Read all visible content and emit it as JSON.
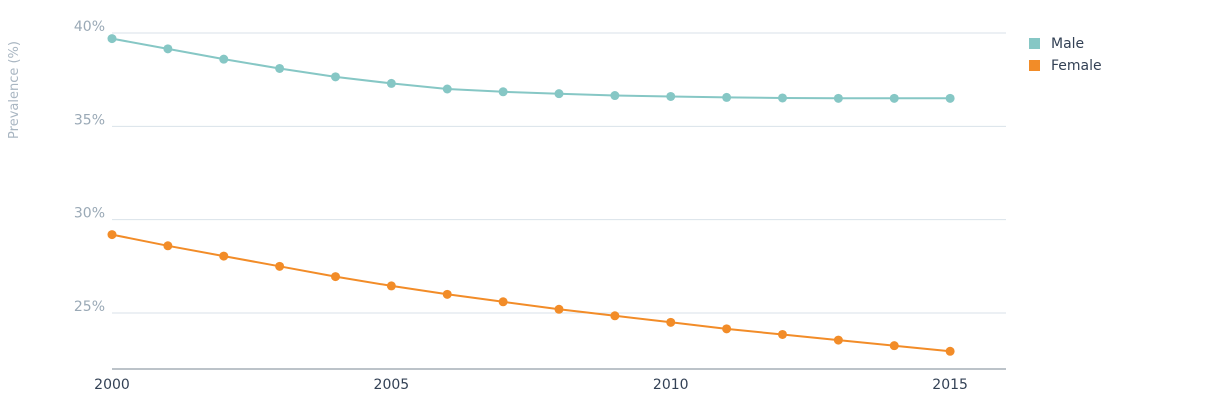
{
  "chart_data": {
    "type": "line",
    "ylabel": "Prevalence (%)",
    "xlabel": "",
    "xlim": [
      2000,
      2016
    ],
    "ylim": [
      22,
      40
    ],
    "x_ticks": [
      2000,
      2005,
      2010,
      2015
    ],
    "x_tick_labels": [
      "2000",
      "2005",
      "2010",
      "2015"
    ],
    "y_ticks": [
      25,
      30,
      35,
      40
    ],
    "y_tick_labels": [
      "25%",
      "30%",
      "35%",
      "40%"
    ],
    "grid": true,
    "legend_position": "top-right",
    "x": [
      2000,
      2001,
      2002,
      2003,
      2004,
      2005,
      2006,
      2007,
      2008,
      2009,
      2010,
      2011,
      2012,
      2013,
      2014,
      2015
    ],
    "series": [
      {
        "name": "Male",
        "color": "#86c7c5",
        "values": [
          39.7,
          39.15,
          38.6,
          38.1,
          37.65,
          37.3,
          37.0,
          36.85,
          36.75,
          36.65,
          36.6,
          36.55,
          36.52,
          36.5,
          36.5,
          36.5
        ]
      },
      {
        "name": "Female",
        "color": "#f28c28",
        "values": [
          29.2,
          28.6,
          28.05,
          27.5,
          26.95,
          26.45,
          26.0,
          25.6,
          25.2,
          24.85,
          24.5,
          24.15,
          23.85,
          23.55,
          23.25,
          22.95
        ]
      }
    ]
  }
}
